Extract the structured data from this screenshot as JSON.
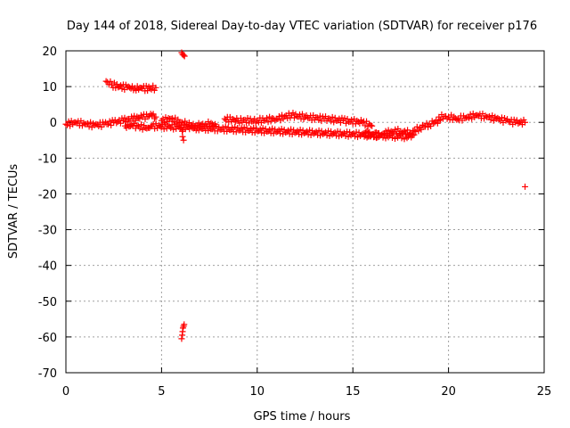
{
  "chart_data": {
    "type": "scatter",
    "title": "Day 144 of 2018, Sidereal Day-to-day VTEC variation (SDTVAR) for receiver p176",
    "xlabel": "GPS time / hours",
    "ylabel": "SDTVAR / TECUs",
    "xlim": [
      0,
      25
    ],
    "ylim": [
      -70,
      20
    ],
    "xticks": [
      0,
      5,
      10,
      15,
      20,
      25
    ],
    "yticks": [
      20,
      10,
      0,
      -10,
      -20,
      -30,
      -40,
      -50,
      -60,
      -70
    ],
    "grid": true,
    "marker": "plus",
    "series_color": "#ff0000",
    "series": [
      {
        "name": "SDTVAR",
        "segments": [
          {
            "x": [
              0.0,
              0.5,
              1.0,
              1.5,
              2.0,
              2.5,
              3.0,
              3.5,
              4.0,
              4.5,
              4.7
            ],
            "y": [
              -0.5,
              0.0,
              -0.5,
              -0.8,
              -0.5,
              0.0,
              0.5,
              1.0,
              1.5,
              2.0,
              1.5
            ]
          },
          {
            "x": [
              2.1,
              2.4,
              2.8,
              3.2,
              3.6,
              4.0,
              4.4,
              4.7
            ],
            "y": [
              11.5,
              10.5,
              10.0,
              9.8,
              9.6,
              9.5,
              9.5,
              9.7
            ]
          },
          {
            "x": [
              5.0,
              5.5,
              6.0,
              6.3,
              6.8,
              7.3,
              7.8
            ],
            "y": [
              0.5,
              1.0,
              0.0,
              -0.5,
              -1.0,
              -0.5,
              -0.5
            ]
          },
          {
            "x": [
              8.3,
              9.0,
              10.0,
              11.0,
              11.8,
              12.5,
              13.5,
              14.5,
              15.5,
              16.0
            ],
            "y": [
              1.0,
              0.5,
              0.5,
              1.0,
              2.0,
              1.5,
              1.0,
              0.5,
              0.0,
              -1.0
            ]
          },
          {
            "x": [
              15.6,
              16.0,
              16.5,
              17.0,
              17.5,
              18.0,
              18.5,
              19.0,
              19.5
            ],
            "y": [
              -3.0,
              -3.5,
              -3.5,
              -2.5,
              -2.5,
              -3.0,
              -1.5,
              -0.5,
              0.5
            ]
          },
          {
            "x": [
              19.5,
              20.0,
              20.5,
              21.0,
              21.5,
              22.0,
              22.5,
              23.0,
              23.5,
              24.0
            ],
            "y": [
              1.5,
              1.5,
              1.0,
              1.5,
              2.0,
              1.5,
              1.0,
              0.5,
              0.0,
              0.0
            ]
          },
          {
            "x": [
              6.05,
              6.1,
              6.15,
              6.2
            ],
            "y": [
              19.5,
              19.0,
              18.8,
              18.5
            ]
          },
          {
            "x": [
              6.05,
              6.08,
              6.1,
              6.12,
              6.15,
              6.18
            ],
            "y": [
              -60.5,
              -59.5,
              -58.5,
              -57.5,
              -57.0,
              -56.5
            ]
          },
          {
            "x": [
              6.05,
              6.08,
              6.1,
              6.15
            ],
            "y": [
              -1.5,
              -2.5,
              -4.0,
              -5.0
            ]
          },
          {
            "x": [
              3.1,
              3.5,
              4.3,
              4.5,
              6.6,
              17.9,
              18.2
            ],
            "y": [
              -1.0,
              -1.0,
              -1.5,
              -1.0,
              -1.5,
              -4.0,
              -3.5
            ]
          },
          {
            "x": [
              24.0
            ],
            "y": [
              -18.0
            ]
          }
        ]
      }
    ]
  }
}
